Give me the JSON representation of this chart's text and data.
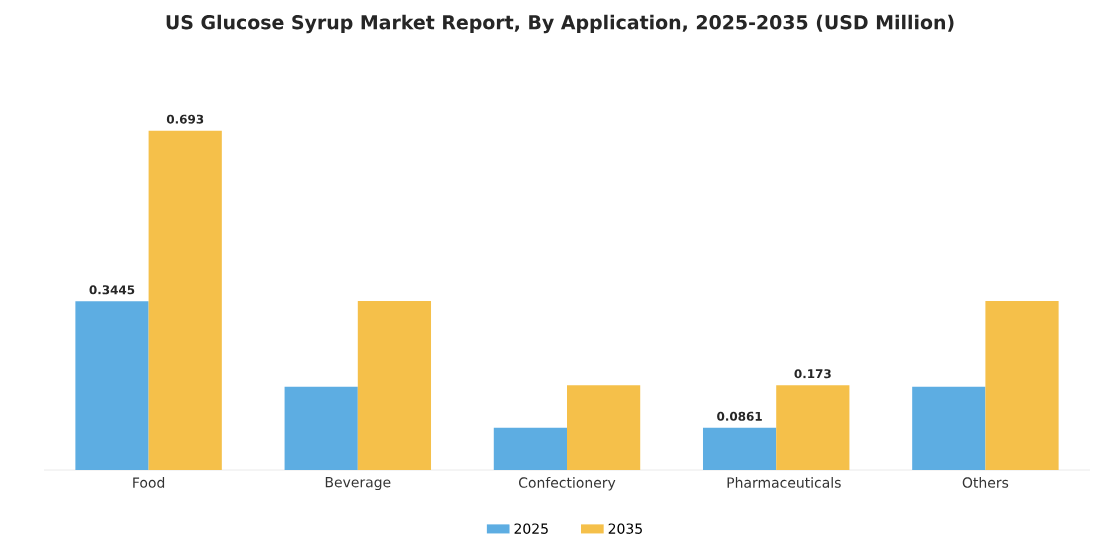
{
  "chart_data": {
    "type": "bar",
    "title": "US Glucose Syrup Market Report, By Application, 2025-2035 (USD Million)",
    "categories": [
      "Food",
      "Beverage",
      "Confectionery",
      "Pharmaceuticals",
      "Others"
    ],
    "series": [
      {
        "name": "2025",
        "color": "#5dade2",
        "values": [
          0.3445,
          0.17,
          0.0861,
          0.0861,
          0.17
        ],
        "value_labels": [
          "0.3445",
          null,
          null,
          "0.0861",
          null
        ]
      },
      {
        "name": "2035",
        "color": "#f5c04a",
        "values": [
          0.693,
          0.345,
          0.173,
          0.173,
          0.345
        ],
        "value_labels": [
          "0.693",
          null,
          null,
          "0.173",
          null
        ]
      }
    ],
    "legend": "bottom"
  }
}
